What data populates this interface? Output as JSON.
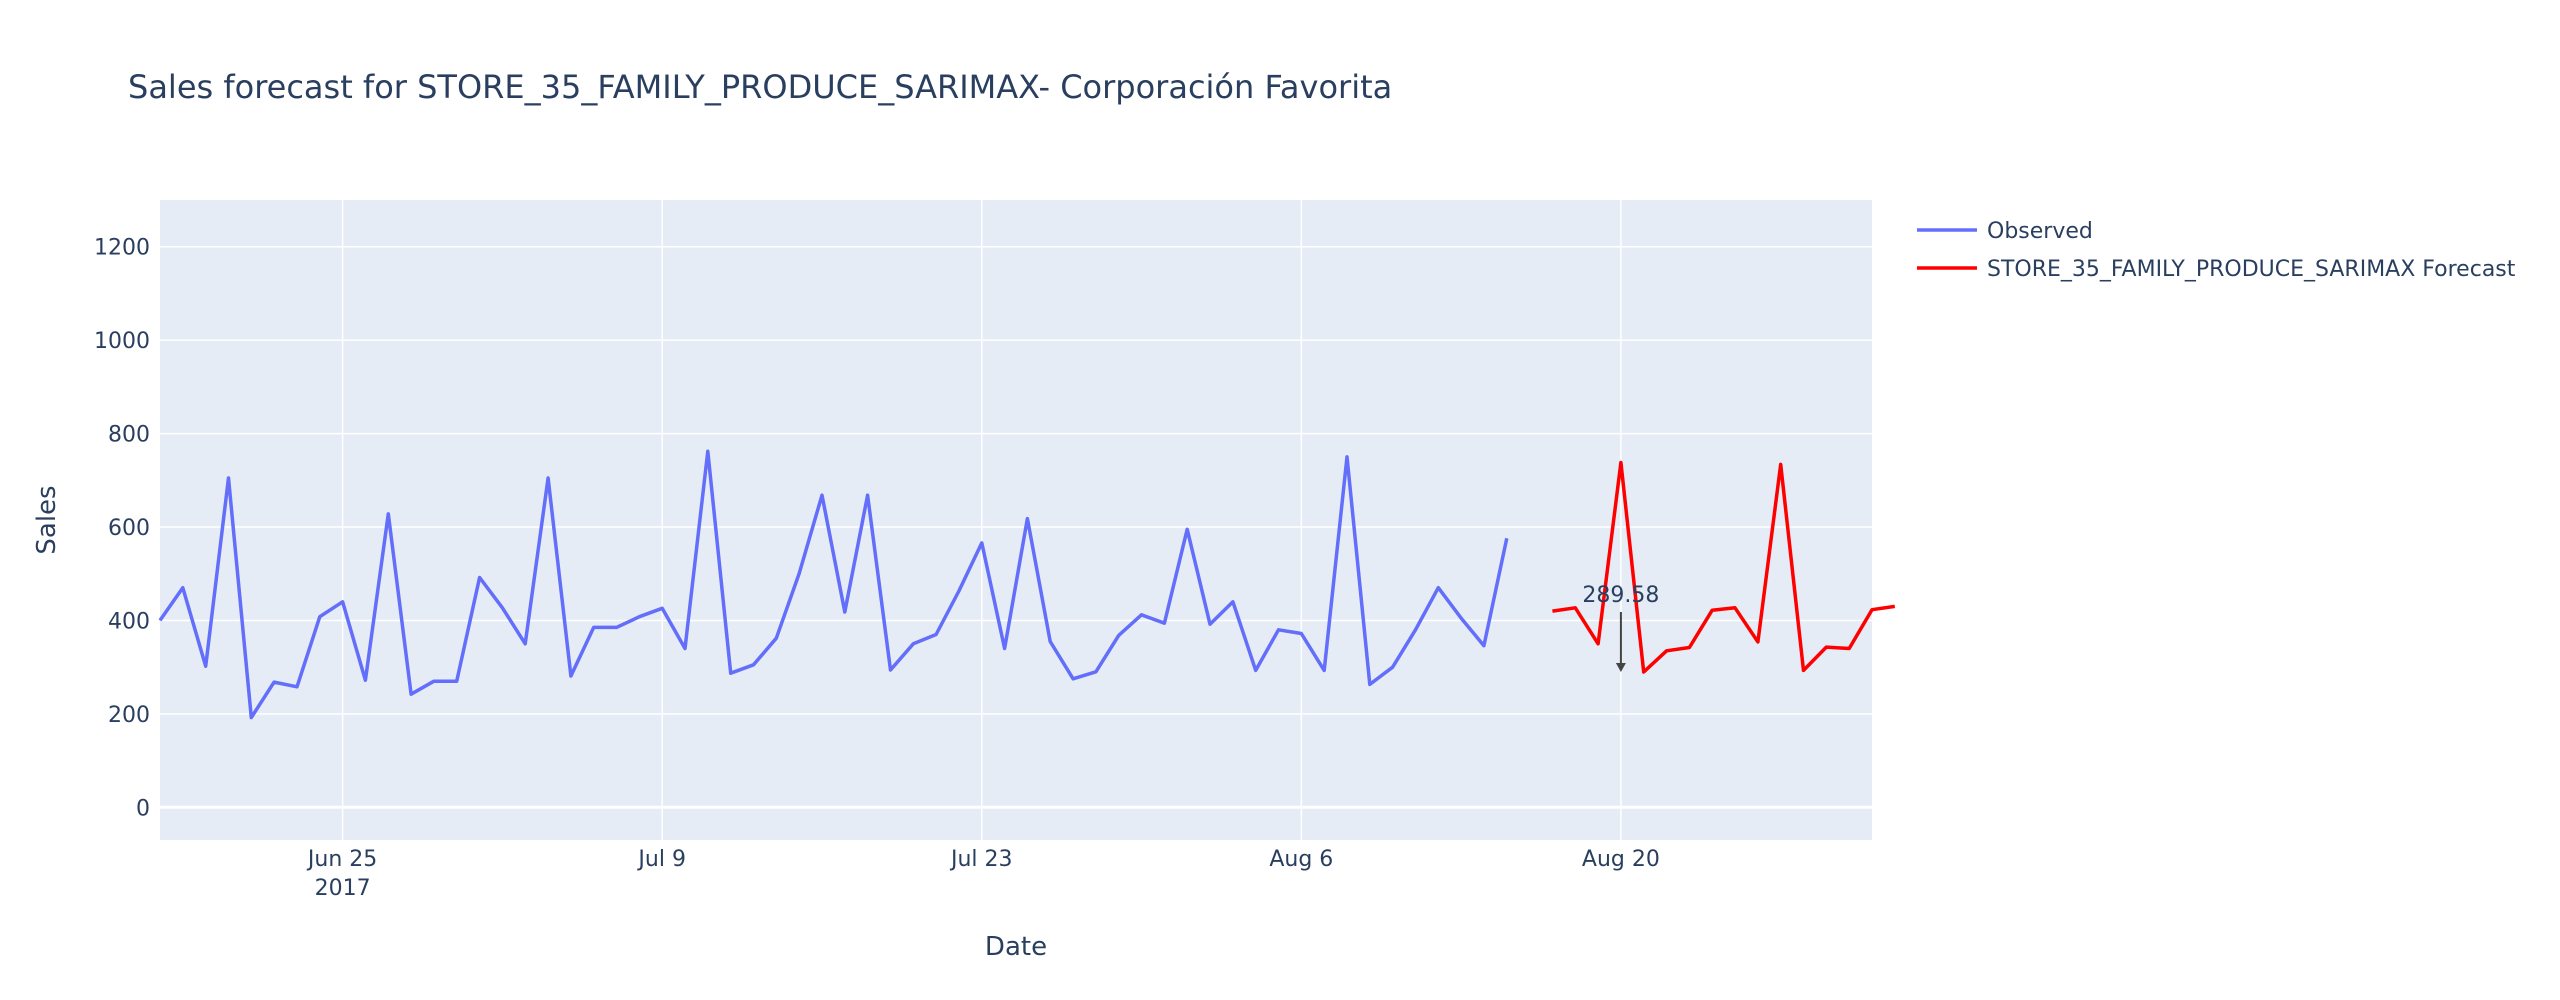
{
  "chart_data": {
    "type": "line",
    "title": "Sales forecast for STORE_35_FAMILY_PRODUCE_SARIMAX- Corporación Favorita",
    "xlabel": "Date",
    "ylabel": "Sales",
    "ylim": [
      -70,
      1300
    ],
    "xlim": [
      "2017-06-17",
      "2017-08-31"
    ],
    "y_ticks": [
      0,
      200,
      400,
      600,
      800,
      1000,
      1200
    ],
    "x_ticks": [
      {
        "date": "2017-06-25",
        "label": "Jun 25",
        "sublabel": "2017"
      },
      {
        "date": "2017-07-09",
        "label": "Jul 9",
        "sublabel": ""
      },
      {
        "date": "2017-07-23",
        "label": "Jul 23",
        "sublabel": ""
      },
      {
        "date": "2017-08-06",
        "label": "Aug 6",
        "sublabel": ""
      },
      {
        "date": "2017-08-20",
        "label": "Aug 20",
        "sublabel": ""
      }
    ],
    "grid": true,
    "legend_position": "top-right",
    "series": [
      {
        "name": "Observed",
        "color": "#636efa",
        "start_date": "2017-06-17",
        "values": [
          400,
          470,
          302,
          705,
          192,
          268,
          258,
          408,
          440,
          272,
          628,
          242,
          270,
          270,
          492,
          427,
          350,
          705,
          281,
          385,
          385,
          408,
          426,
          340,
          762,
          287,
          305,
          362,
          500,
          668,
          418,
          668,
          294,
          350,
          370,
          463,
          566,
          340,
          618,
          355,
          275,
          290,
          368,
          412,
          394,
          595,
          392,
          440,
          293,
          380,
          372,
          293,
          750,
          263,
          300,
          380,
          470,
          405,
          346,
          576
        ]
      },
      {
        "name": "STORE_35_FAMILY_PRODUCE_SARIMAX Forecast",
        "color": "#ff0000",
        "start_date": "2017-08-17",
        "values": [
          420,
          427,
          350,
          738,
          289.58,
          335,
          342,
          422,
          427,
          354,
          734,
          293,
          343,
          340,
          423,
          430
        ]
      }
    ],
    "annotations": [
      {
        "text": "289.58",
        "date": "2017-08-20",
        "value": 289.58
      }
    ]
  }
}
